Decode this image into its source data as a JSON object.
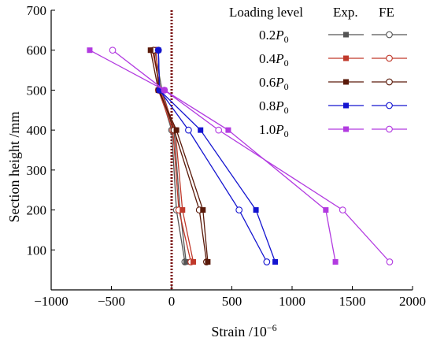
{
  "chart_data": {
    "type": "line",
    "title": "",
    "xlabel": "Strain /10",
    "xlabel_exponent": "−6",
    "ylabel": "Section height /mm",
    "xlim": [
      -1000,
      2000
    ],
    "ylim": [
      0,
      700
    ],
    "x_ticks": [
      -1000,
      -500,
      0,
      500,
      1000,
      1500,
      2000
    ],
    "y_ticks": [
      100,
      200,
      300,
      400,
      500,
      600,
      700
    ],
    "x_tick_labels": [
      "−1000",
      "−500",
      "0",
      "500",
      "1000",
      "1500",
      "2000"
    ],
    "y_tick_labels": [
      "100",
      "200",
      "300",
      "400",
      "500",
      "600",
      "700"
    ],
    "grid": false,
    "legend_position": "top-right",
    "legend_header": {
      "group": "Loading level",
      "exp": "Exp.",
      "fe": "FE"
    },
    "y": [
      600,
      500,
      400,
      200,
      70
    ],
    "reference_line": {
      "x": 0,
      "color": "#7a1010",
      "style": "dotted"
    },
    "series": [
      {
        "level": "0.2",
        "subscript": "0",
        "color": "#555555",
        "exp": [
          -140,
          -80,
          20,
          70,
          120
        ],
        "fe": [
          -110,
          -100,
          0,
          40,
          110
        ]
      },
      {
        "level": "0.4",
        "subscript": "0",
        "color": "#c0392b",
        "exp": [
          -160,
          -90,
          30,
          90,
          180
        ],
        "fe": [
          -130,
          -110,
          10,
          60,
          160
        ]
      },
      {
        "level": "0.6",
        "subscript": "0",
        "color": "#5a1a0a",
        "exp": [
          -175,
          -110,
          40,
          260,
          300
        ],
        "fe": [
          -150,
          -100,
          20,
          230,
          290
        ]
      },
      {
        "level": "0.8",
        "subscript": "0",
        "color": "#1414d0",
        "exp": [
          -110,
          -100,
          240,
          700,
          860
        ],
        "fe": [
          -110,
          -100,
          140,
          560,
          790
        ]
      },
      {
        "level": "1.0",
        "subscript": "0",
        "color": "#b23ae0",
        "exp": [
          -680,
          -60,
          470,
          1280,
          1360
        ],
        "fe": [
          -490,
          -60,
          390,
          1420,
          1810
        ]
      }
    ]
  }
}
